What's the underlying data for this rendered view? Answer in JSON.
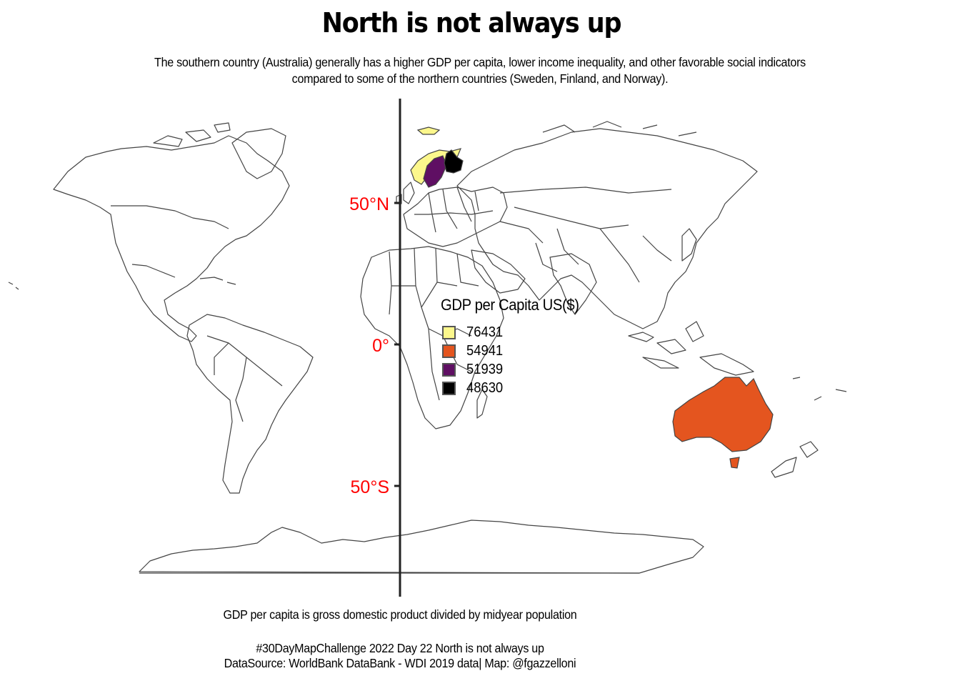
{
  "title": "North is not always up",
  "subtitle": {
    "line1": "The southern country (Australia) generally has a higher GDP per capita, lower income inequality, and other favorable social indicators",
    "line2": "compared to some of the northern countries (Sweden, Finland, and Norway)."
  },
  "axis": {
    "labels": [
      "50°N",
      "0°",
      "50°S"
    ],
    "label_color": "#ff0000"
  },
  "legend": {
    "title": "GDP per Capita US($)",
    "items": [
      {
        "value": "76431",
        "color": "#fcf78c"
      },
      {
        "value": "54941",
        "color": "#e4551f"
      },
      {
        "value": "51939",
        "color": "#5f0f63"
      },
      {
        "value": "48630",
        "color": "#000000"
      }
    ]
  },
  "caption": {
    "note": "GDP per capita is gross domestic product divided by midyear population",
    "line1": "#30DayMapChallenge 2022 Day 22 North is not always up",
    "line2": "DataSource: WorldBank DataBank - WDI 2019 data| Map: @fgazzelloni"
  },
  "colors": {
    "outline": "#444444",
    "norway": "#fcf78c",
    "australia": "#e4551f",
    "sweden": "#5f0f63",
    "finland": "#000000"
  }
}
